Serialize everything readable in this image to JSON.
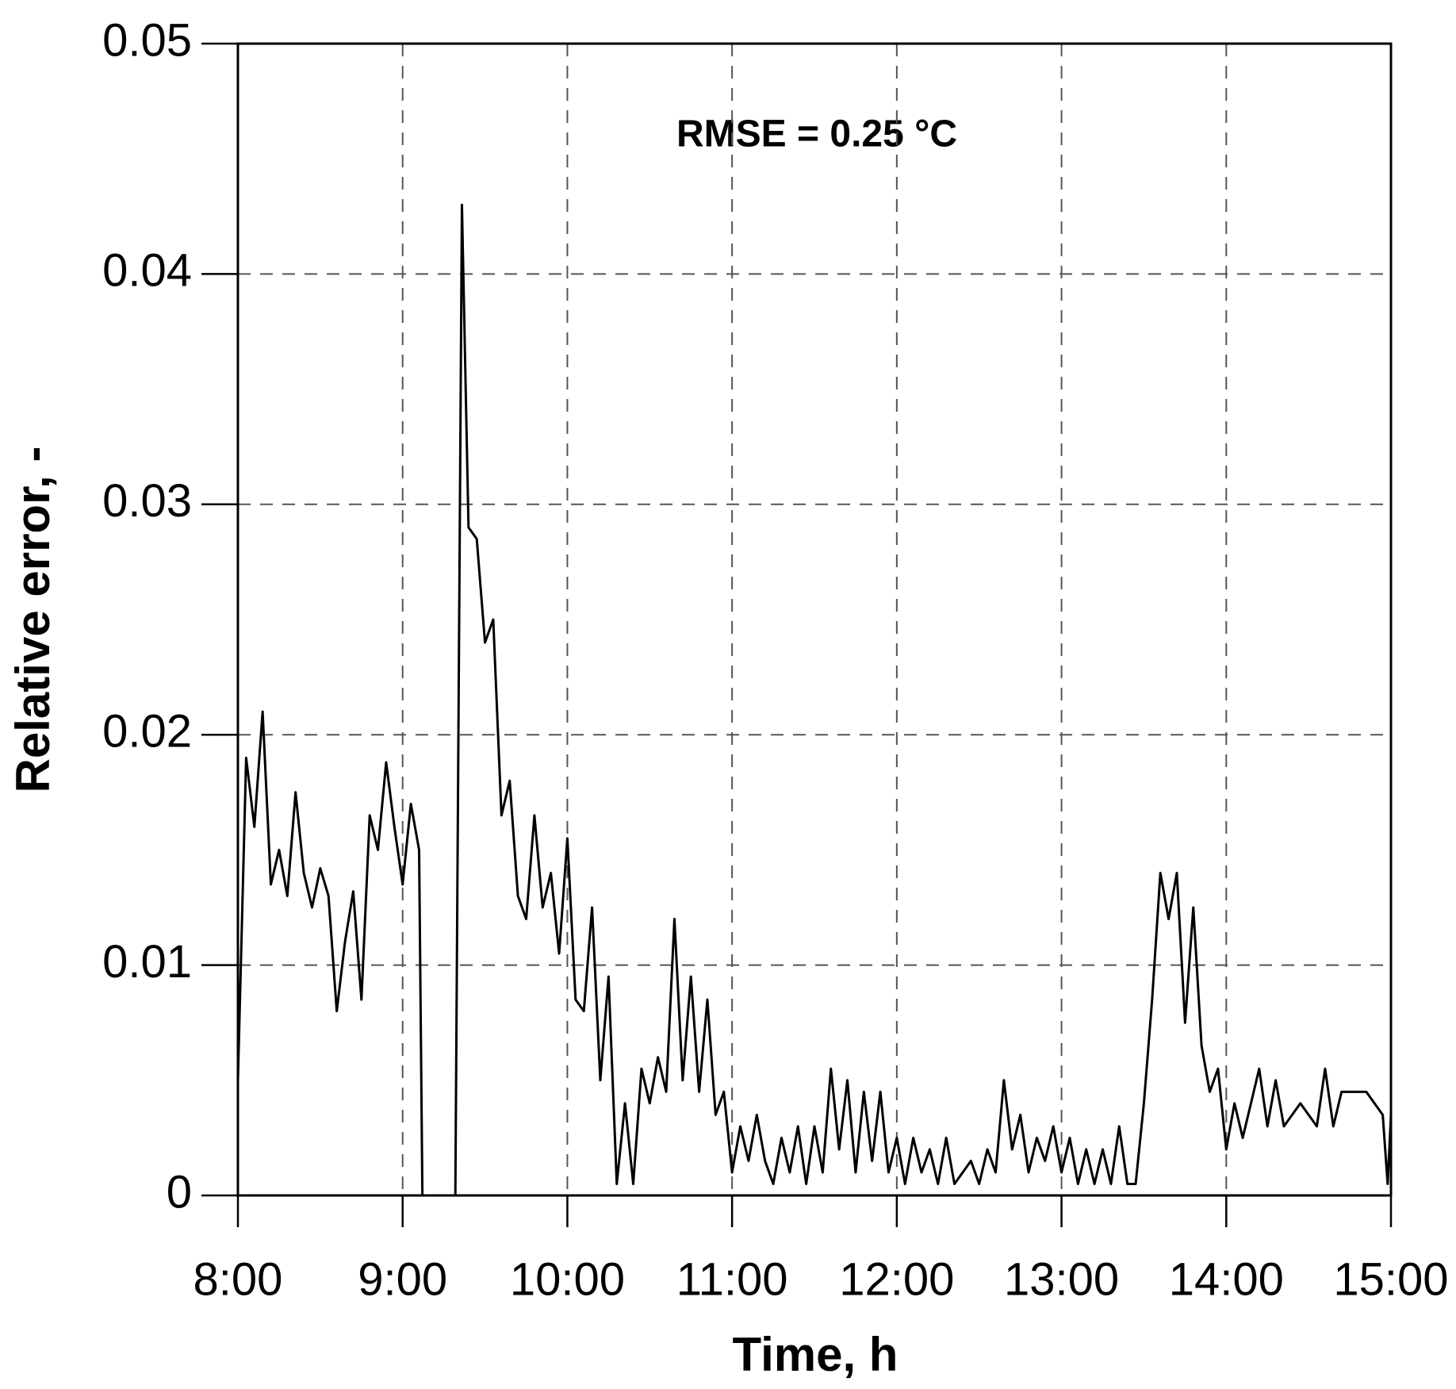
{
  "chart_data": {
    "type": "line",
    "annotation": "RMSE = 0.25 °C",
    "x_label": "Time, h",
    "y_label": "Relative error, -",
    "xlim": [
      8,
      15
    ],
    "xticks": [
      {
        "value": 8,
        "label": "8:00"
      },
      {
        "value": 9,
        "label": "9:00"
      },
      {
        "value": 10,
        "label": "10:00"
      },
      {
        "value": 11,
        "label": "11:00"
      },
      {
        "value": 12,
        "label": "12:00"
      },
      {
        "value": 13,
        "label": "13:00"
      },
      {
        "value": 14,
        "label": "14:00"
      },
      {
        "value": 15,
        "label": "15:00"
      }
    ],
    "ylim": [
      0,
      0.05
    ],
    "yticks": [
      0,
      0.01,
      0.02,
      0.03,
      0.04,
      0.05
    ],
    "grid": true,
    "color": "#000000",
    "x": [
      8.0,
      8.05,
      8.1,
      8.15,
      8.2,
      8.25,
      8.3,
      8.35,
      8.4,
      8.45,
      8.5,
      8.55,
      8.6,
      8.65,
      8.7,
      8.75,
      8.8,
      8.85,
      8.9,
      8.95,
      9.0,
      9.05,
      9.1,
      9.12,
      9.32,
      9.36,
      9.4,
      9.45,
      9.5,
      9.55,
      9.6,
      9.65,
      9.7,
      9.75,
      9.8,
      9.85,
      9.9,
      9.95,
      10.0,
      10.05,
      10.1,
      10.15,
      10.2,
      10.25,
      10.3,
      10.35,
      10.4,
      10.45,
      10.5,
      10.55,
      10.6,
      10.65,
      10.7,
      10.75,
      10.8,
      10.85,
      10.9,
      10.95,
      11.0,
      11.05,
      11.1,
      11.15,
      11.2,
      11.25,
      11.3,
      11.35,
      11.4,
      11.45,
      11.5,
      11.55,
      11.6,
      11.65,
      11.7,
      11.75,
      11.8,
      11.85,
      11.9,
      11.95,
      12.0,
      12.05,
      12.1,
      12.15,
      12.2,
      12.25,
      12.3,
      12.35,
      12.4,
      12.45,
      12.5,
      12.55,
      12.6,
      12.65,
      12.7,
      12.75,
      12.8,
      12.85,
      12.9,
      12.95,
      13.0,
      13.05,
      13.1,
      13.15,
      13.2,
      13.25,
      13.3,
      13.35,
      13.4,
      13.45,
      13.5,
      13.55,
      13.6,
      13.65,
      13.7,
      13.75,
      13.8,
      13.85,
      13.9,
      13.95,
      14.0,
      14.05,
      14.1,
      14.15,
      14.2,
      14.25,
      14.3,
      14.35,
      14.4,
      14.45,
      14.5,
      14.55,
      14.6,
      14.65,
      14.7,
      14.75,
      14.8,
      14.85,
      14.9,
      14.95,
      14.98,
      15.0
    ],
    "values": [
      0.005,
      0.019,
      0.016,
      0.021,
      0.0135,
      0.015,
      0.013,
      0.0175,
      0.014,
      0.0125,
      0.0142,
      0.013,
      0.008,
      0.011,
      0.0132,
      0.0085,
      0.0165,
      0.015,
      0.0188,
      0.016,
      0.0135,
      0.017,
      0.015,
      0,
      0,
      0.043,
      0.029,
      0.0285,
      0.024,
      0.025,
      0.0165,
      0.018,
      0.013,
      0.012,
      0.0165,
      0.0125,
      0.014,
      0.0105,
      0.0155,
      0.0085,
      0.008,
      0.0125,
      0.005,
      0.0095,
      0.0005,
      0.004,
      0.0005,
      0.0055,
      0.004,
      0.006,
      0.0045,
      0.012,
      0.005,
      0.0095,
      0.0045,
      0.0085,
      0.0035,
      0.0045,
      0.001,
      0.003,
      0.0015,
      0.0035,
      0.0015,
      0.0005,
      0.0025,
      0.001,
      0.003,
      0.0005,
      0.003,
      0.001,
      0.0055,
      0.002,
      0.005,
      0.001,
      0.0045,
      0.0015,
      0.0045,
      0.001,
      0.0025,
      0.0005,
      0.0025,
      0.001,
      0.002,
      0.0005,
      0.0025,
      0.0005,
      0.001,
      0.0015,
      0.0005,
      0.002,
      0.001,
      0.005,
      0.002,
      0.0035,
      0.001,
      0.0025,
      0.0015,
      0.003,
      0.001,
      0.0025,
      0.0005,
      0.002,
      0.0005,
      0.002,
      0.0005,
      0.003,
      0.0005,
      0.0005,
      0.004,
      0.0085,
      0.014,
      0.012,
      0.014,
      0.0075,
      0.0125,
      0.0065,
      0.0045,
      0.0055,
      0.002,
      0.004,
      0.0025,
      0.004,
      0.0055,
      0.003,
      0.005,
      0.003,
      0.0035,
      0.004,
      0.0035,
      0.003,
      0.0055,
      0.003,
      0.0045,
      0.0045,
      0.0045,
      0.0045,
      0.004,
      0.0035,
      0.0005,
      0.0035
    ]
  }
}
